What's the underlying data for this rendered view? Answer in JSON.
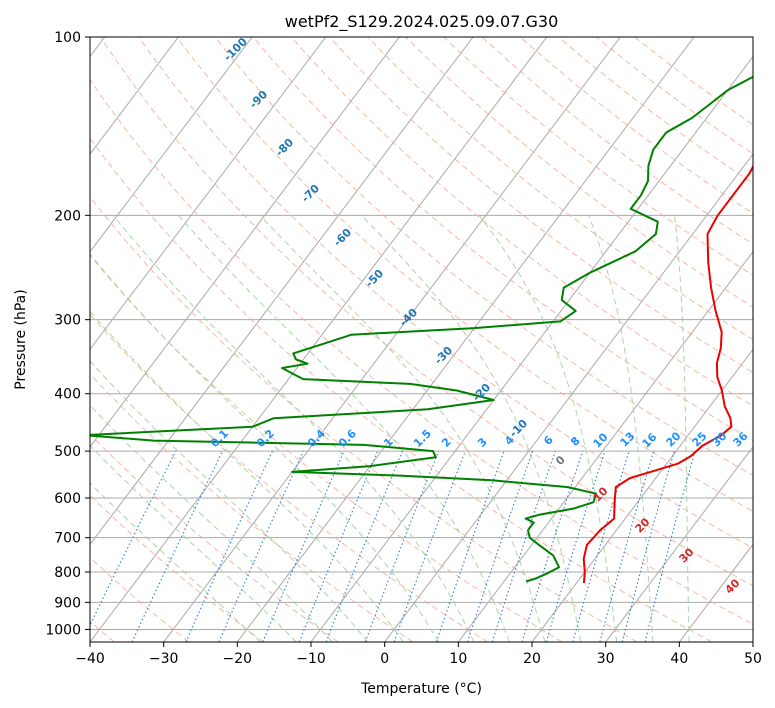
{
  "chart_data": {
    "type": "line",
    "subtype": "skew-t log-p diagram",
    "title": "wetPf2_S129.2024.025.09.07.G30",
    "xlabel": "Temperature (°C)",
    "ylabel": "Pressure (hPa)",
    "xlim": [
      -40,
      50
    ],
    "ylim": [
      1050,
      100
    ],
    "yscale": "log",
    "x_ticks": [
      "−40",
      "−30",
      "−20",
      "−10",
      "0",
      "10",
      "20",
      "30",
      "40",
      "50"
    ],
    "y_ticks": [
      "100",
      "200",
      "300",
      "400",
      "500",
      "600",
      "700",
      "800",
      "900",
      "1000"
    ],
    "grid": true,
    "series": [
      {
        "role": "temperature",
        "color": "#ee0000",
        "points": [
          [
            21,
            835
          ],
          [
            20,
            800
          ],
          [
            18.5,
            760
          ],
          [
            17.5,
            720
          ],
          [
            17.8,
            680
          ],
          [
            18.5,
            650
          ],
          [
            17.5,
            625
          ],
          [
            16.5,
            600
          ],
          [
            15.5,
            575
          ],
          [
            16.5,
            555
          ],
          [
            19,
            540
          ],
          [
            21.5,
            525
          ],
          [
            22.5,
            510
          ],
          [
            23,
            490
          ],
          [
            24.5,
            470
          ],
          [
            25,
            455
          ],
          [
            24,
            440
          ],
          [
            22,
            420
          ],
          [
            20,
            395
          ],
          [
            18,
            375
          ],
          [
            16.5,
            355
          ],
          [
            15.5,
            335
          ],
          [
            14,
            315
          ],
          [
            11,
            290
          ],
          [
            8,
            265
          ],
          [
            5,
            240
          ],
          [
            2,
            215
          ],
          [
            1.5,
            200
          ],
          [
            1.5,
            170
          ],
          [
            0.5,
            150
          ],
          [
            -0.5,
            135
          ],
          [
            -2.5,
            122
          ],
          [
            -3,
            115
          ],
          [
            -3.5,
            105
          ],
          [
            -4,
            100
          ]
        ]
      },
      {
        "role": "dewpoint",
        "color": "#008000",
        "points": [
          [
            13,
            830
          ],
          [
            14,
            820
          ],
          [
            15,
            805
          ],
          [
            16,
            785
          ],
          [
            14,
            750
          ],
          [
            11,
            720
          ],
          [
            9,
            700
          ],
          [
            8,
            680
          ],
          [
            8,
            660
          ],
          [
            6.5,
            650
          ],
          [
            8,
            640
          ],
          [
            12,
            625
          ],
          [
            14,
            610
          ],
          [
            13.5,
            590
          ],
          [
            9,
            575
          ],
          [
            -2,
            560
          ],
          [
            -15,
            550
          ],
          [
            -30,
            542
          ],
          [
            -20,
            530
          ],
          [
            -12,
            512
          ],
          [
            -13,
            500
          ],
          [
            -23,
            488
          ],
          [
            -52,
            480
          ],
          [
            -62,
            470
          ],
          [
            -40,
            455
          ],
          [
            -38,
            440
          ],
          [
            -18,
            425
          ],
          [
            -10,
            410
          ],
          [
            -16,
            395
          ],
          [
            -23,
            385
          ],
          [
            -38,
            378
          ],
          [
            -40,
            370
          ],
          [
            -42,
            362
          ],
          [
            -39,
            356
          ],
          [
            -41,
            350
          ],
          [
            -42,
            342
          ],
          [
            -39,
            330
          ],
          [
            -36,
            318
          ],
          [
            -20,
            310
          ],
          [
            -9,
            302
          ],
          [
            -8,
            290
          ],
          [
            -11,
            278
          ],
          [
            -12,
            265
          ],
          [
            -10,
            250
          ],
          [
            -6,
            230
          ],
          [
            -5,
            215
          ],
          [
            -6,
            205
          ],
          [
            -11,
            195
          ],
          [
            -11,
            185
          ],
          [
            -11.5,
            175
          ],
          [
            -13,
            165
          ],
          [
            -14,
            155
          ],
          [
            -14,
            145
          ],
          [
            -12,
            137
          ],
          [
            -11,
            130
          ],
          [
            -10,
            123
          ],
          [
            -8,
            117
          ],
          [
            -6,
            110
          ],
          [
            -6,
            105
          ],
          [
            -6,
            100
          ]
        ]
      }
    ],
    "dry_adiabat_labels": [
      "-100",
      "-90",
      "-80",
      "-70",
      "-60",
      "-50",
      "-40",
      "-30",
      "-20",
      "-10",
      "0"
    ],
    "moist_adiabat_labels": [
      "10",
      "20",
      "30",
      "40"
    ],
    "mixing_ratio_labels": [
      "0.1",
      "0.2",
      "0.4",
      "0.6",
      "1",
      "1.5",
      "2",
      "3",
      "4",
      "6",
      "8",
      "10",
      "13",
      "16",
      "20",
      "25",
      "30",
      "36"
    ],
    "colors": {
      "temperature": "#ee0000",
      "dewpoint": "#008000",
      "isotherm": "#aaaaaa",
      "dry_adiabat": "#f7a58e",
      "moist_adiabat": "#9fd19f",
      "mixing_ratio": "#2f7fd8",
      "dry_label": "#1f77b4",
      "moist_label": "#d62728",
      "mixing_label": "#1e90ff",
      "zero_label": "#777777"
    }
  }
}
